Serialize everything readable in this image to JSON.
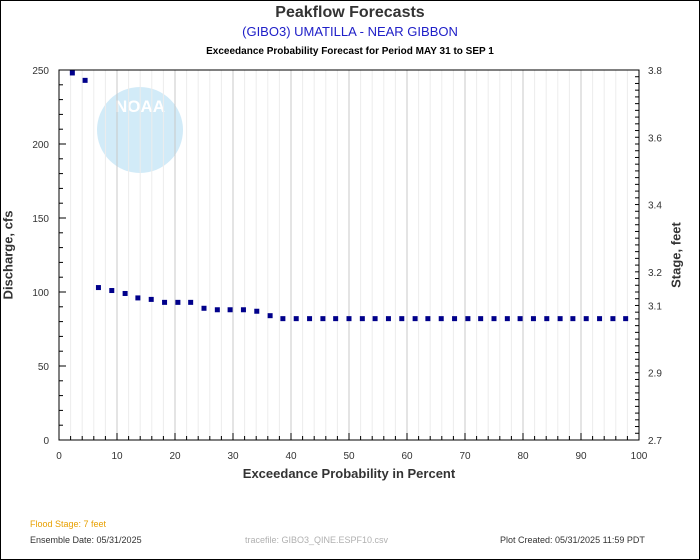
{
  "chart_data": {
    "type": "scatter",
    "title": "Peakflow Forecasts",
    "subtitle": "(GIBO3) UMATILLA - NEAR GIBBON",
    "subtitle2": "Exceedance Probability Forecast for Period MAY 31 to SEP 1",
    "xlabel": "Exceedance Probability in Percent",
    "ylabel": "Discharge, cfs",
    "ylabel_right": "Stage, feet",
    "xlim": [
      0,
      100
    ],
    "ylim": [
      0,
      250
    ],
    "ylim_right": [
      2.7,
      3.8
    ],
    "x_ticks": [
      "0",
      "10",
      "20",
      "30",
      "40",
      "50",
      "60",
      "70",
      "80",
      "90",
      "100"
    ],
    "y_ticks": [
      "0",
      "50",
      "100",
      "150",
      "200",
      "250"
    ],
    "y_ticks_right": [
      "2.7",
      "2.9",
      "3.1",
      "3.2",
      "3.4",
      "3.6",
      "3.8"
    ],
    "grid": true,
    "marker_color": "#00008b",
    "series": [
      {
        "x": [
          2.3,
          4.5,
          6.8,
          9.1,
          11.4,
          13.6,
          15.9,
          18.2,
          20.5,
          22.7,
          25.0,
          27.3,
          29.5,
          31.8,
          34.1,
          36.4,
          38.6,
          40.9,
          43.2,
          45.5,
          47.7,
          50.0,
          52.3,
          54.5,
          56.8,
          59.1,
          61.4,
          63.6,
          65.9,
          68.2,
          70.5,
          72.7,
          75.0,
          77.3,
          79.5,
          81.8,
          84.1,
          86.4,
          88.6,
          90.9,
          93.2,
          95.5,
          97.7
        ],
        "y": [
          248,
          243,
          103,
          101,
          99,
          96,
          95,
          93,
          93,
          93,
          89,
          88,
          88,
          88,
          87,
          84,
          82,
          82,
          82,
          82,
          82,
          82,
          82,
          82,
          82,
          82,
          82,
          82,
          82,
          82,
          82,
          82,
          82,
          82,
          82,
          82,
          82,
          82,
          82,
          82,
          82,
          82,
          82
        ]
      }
    ]
  },
  "footer": {
    "flood_stage": "Flood Stage: 7 feet",
    "ensemble_date": "Ensemble Date: 05/31/2025",
    "tracefile": "tracefile: GIBO3_QINE.ESPF10.csv",
    "plot_created": "Plot Created: 05/31/2025 11:59 PDT"
  },
  "logo": {
    "text": "NOAA",
    "color": "#bfe3f5"
  }
}
